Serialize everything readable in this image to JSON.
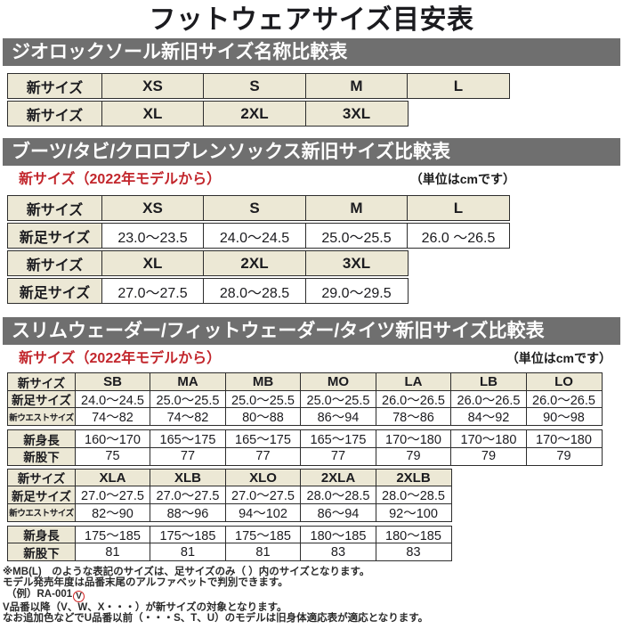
{
  "title": "フットウェアサイズ目安表",
  "sections": [
    {
      "name": "geolock-sole",
      "header": "ジオロックソール新旧サイズ名称比較表",
      "table": {
        "rows": [
          {
            "type": "header",
            "cells": [
              "新サイズ",
              "XS",
              "S",
              "M",
              "L"
            ]
          },
          {
            "type": "header",
            "cells": [
              "新サイズ",
              "XL",
              "2XL",
              "3XL"
            ]
          }
        ]
      }
    },
    {
      "name": "boots-tabi-socks",
      "header": "ブーツ/タビ/クロロプレンソックス新旧サイズ比較表",
      "subtitle_left": "新サイズ（2022年モデルから）",
      "subtitle_right": "（単位はcmです）",
      "table": {
        "rows": [
          {
            "type": "header",
            "cells": [
              "新サイズ",
              "XS",
              "S",
              "M",
              "L"
            ]
          },
          {
            "type": "data",
            "cells": [
              "新足サイズ",
              "23.0～23.5",
              "24.0～24.5",
              "25.0～25.5",
              "26.0 ～26.5"
            ]
          },
          {
            "type": "header",
            "cells": [
              "新サイズ",
              "XL",
              "2XL",
              "3XL"
            ]
          },
          {
            "type": "data",
            "cells": [
              "新足サイズ",
              "27.0～27.5",
              "28.0～28.5",
              "29.0～29.5"
            ]
          }
        ]
      }
    },
    {
      "name": "wader-tights",
      "header": "スリムウェーダー/フィットウェーダー/タイツ新旧サイズ比較表",
      "subtitle_left": "新サイズ（2022年モデルから）",
      "subtitle_right": "（単位はcmです）",
      "table_a": {
        "rows": [
          {
            "type": "header",
            "cells": [
              "新サイズ",
              "SB",
              "MA",
              "MB",
              "MO",
              "LA",
              "LB",
              "LO"
            ]
          },
          {
            "type": "data",
            "cells": [
              "新足サイズ",
              "24.0～24.5",
              "25.0～25.5",
              "25.0～25.5",
              "25.0～25.5",
              "26.0～26.5",
              "26.0～26.5",
              "26.0～26.5"
            ]
          },
          {
            "type": "data",
            "small_label": true,
            "cells": [
              "新ウエストサイズ",
              "74～82",
              "74～82",
              "80～88",
              "86～94",
              "78～86",
              "84～92",
              "90～98"
            ]
          },
          {
            "type": "data",
            "gap_before": true,
            "cells": [
              "新身長",
              "160～170",
              "165～175",
              "165～175",
              "165～175",
              "170～180",
              "170～180",
              "170～180"
            ]
          },
          {
            "type": "data",
            "cells": [
              "新股下",
              "75",
              "77",
              "77",
              "77",
              "79",
              "79",
              "79"
            ]
          }
        ]
      },
      "table_b": {
        "rows": [
          {
            "type": "header",
            "cells": [
              "新サイズ",
              "XLA",
              "XLB",
              "XLO",
              "2XLA",
              "2XLB"
            ]
          },
          {
            "type": "data",
            "cells": [
              "新足サイズ",
              "27.0～27.5",
              "27.0～27.5",
              "27.0～27.5",
              "28.0～28.5",
              "28.0～28.5"
            ]
          },
          {
            "type": "data",
            "small_label": true,
            "cells": [
              "新ウエストサイズ",
              "82～90",
              "88～96",
              "94～102",
              "86～94",
              "92～100"
            ]
          },
          {
            "type": "data",
            "gap_before": true,
            "cells": [
              "新身長",
              "175～185",
              "175～185",
              "175～185",
              "180～185",
              "180～185"
            ]
          },
          {
            "type": "data",
            "cells": [
              "新股下",
              "81",
              "81",
              "81",
              "83",
              "83"
            ]
          }
        ]
      }
    }
  ],
  "footnotes": {
    "line1": "※MB(L)　のような表記のサイズは、足サイズのみ（ ）内のサイズとなります。",
    "line2": "モデル発売年度は品番末尾のアルファベットで判別できます。",
    "line3_prefix": "（例）RA-001",
    "line3_circled": "V",
    "line4": "V品番以降（V、W、X・・・）が新サイズの対象となります。",
    "line5": "なお追加色などでU品番以前（・・・S、T、U）のモデルは旧身体適応表が適応となります。"
  },
  "colors": {
    "header_bar_bg": "#6f6f6f",
    "header_bar_text": "#ffffff",
    "cell_beige": "#ece8d5",
    "accent_red": "#c2262c",
    "table_border": "#2d2d2d"
  }
}
